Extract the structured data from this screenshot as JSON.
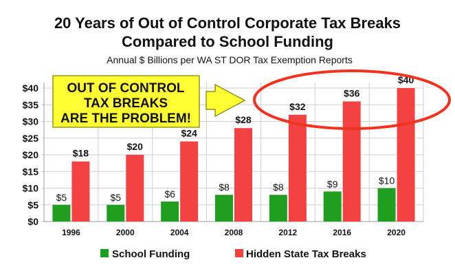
{
  "chart_data": {
    "type": "bar",
    "title_line1": "20 Years of Out of Control Corporate Tax Breaks",
    "title_line2": "Compared to School Funding",
    "subtitle": "Annual $ Billions per WA ST DOR Tax Exemption Reports",
    "categories": [
      "1996",
      "2000",
      "2004",
      "2008",
      "2012",
      "2016",
      "2020"
    ],
    "series": [
      {
        "name": "School Funding",
        "color": "#1f9e1f",
        "values": [
          5,
          5,
          6,
          8,
          8,
          9,
          10
        ],
        "labels": [
          "$5",
          "$5",
          "$6",
          "$8",
          "$8",
          "$9",
          "$10"
        ]
      },
      {
        "name": "Hidden State Tax Breaks",
        "color": "#f44242",
        "values": [
          18,
          20,
          24,
          28,
          32,
          36,
          40
        ],
        "labels": [
          "$18",
          "$20",
          "$24",
          "$28",
          "$32",
          "$36",
          "$40"
        ]
      }
    ],
    "y_ticks": [
      {
        "value": 0,
        "label": "$0"
      },
      {
        "value": 5,
        "label": "$5"
      },
      {
        "value": 10,
        "label": "$10"
      },
      {
        "value": 15,
        "label": "$15"
      },
      {
        "value": 20,
        "label": "$20"
      },
      {
        "value": 25,
        "label": "$25"
      },
      {
        "value": 30,
        "label": "$30"
      },
      {
        "value": 35,
        "label": "$35"
      },
      {
        "value": 40,
        "label": "$40"
      }
    ],
    "ylim": [
      0,
      40
    ],
    "grid": true,
    "legend_position": "bottom",
    "callout": {
      "lines": [
        "OUT OF CONTROL",
        "TAX BREAKS",
        "ARE THE PROBLEM!"
      ],
      "color": "#ffff33"
    },
    "arrow_color": "#ffff33",
    "highlight_ellipse_color": "#f0321e"
  }
}
